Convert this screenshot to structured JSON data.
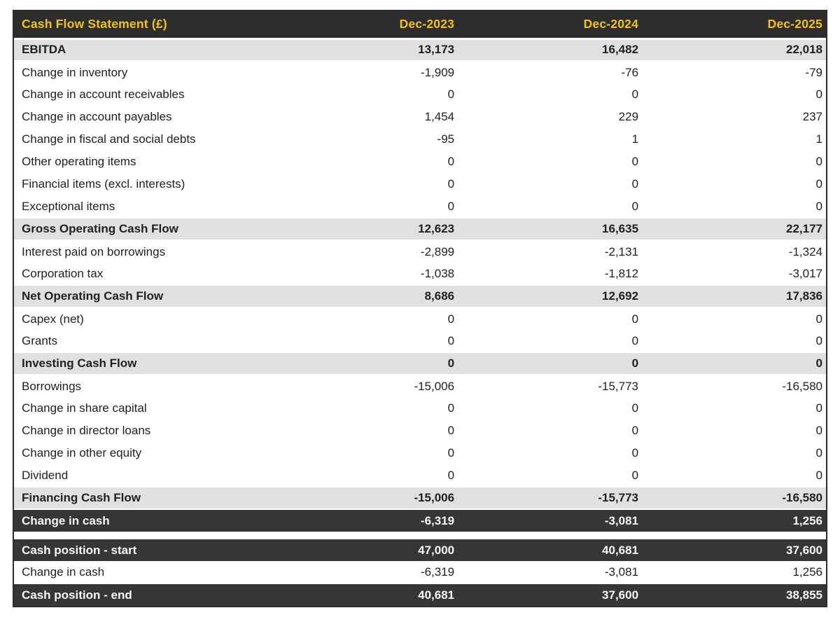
{
  "colors": {
    "header_bg": "#2d2d2d",
    "header_text": "#f2c21b",
    "subtotal_bg": "#e0e0e0",
    "dark_row_bg": "#363636",
    "dark_row_text": "#f5f5f5",
    "body_text": "#212121",
    "border": "#2d2d2d"
  },
  "chart_data": {
    "type": "table",
    "title": "Cash Flow Statement (£)",
    "columns": [
      "Dec-2023",
      "Dec-2024",
      "Dec-2025"
    ],
    "rows": [
      {
        "label": "EBITDA",
        "values": [
          "13,173",
          "16,482",
          "22,018"
        ],
        "style": "subtotal"
      },
      {
        "label": "Change in inventory",
        "values": [
          "-1,909",
          "-76",
          "-79"
        ],
        "style": "normal"
      },
      {
        "label": "Change in account receivables",
        "values": [
          "0",
          "0",
          "0"
        ],
        "style": "normal"
      },
      {
        "label": "Change in account payables",
        "values": [
          "1,454",
          "229",
          "237"
        ],
        "style": "normal"
      },
      {
        "label": "Change in fiscal and social debts",
        "values": [
          "-95",
          "1",
          "1"
        ],
        "style": "normal"
      },
      {
        "label": "Other operating items",
        "values": [
          "0",
          "0",
          "0"
        ],
        "style": "normal"
      },
      {
        "label": "Financial items (excl. interests)",
        "values": [
          "0",
          "0",
          "0"
        ],
        "style": "normal"
      },
      {
        "label": "Exceptional items",
        "values": [
          "0",
          "0",
          "0"
        ],
        "style": "normal"
      },
      {
        "label": "Gross Operating Cash Flow",
        "values": [
          "12,623",
          "16,635",
          "22,177"
        ],
        "style": "subtotal"
      },
      {
        "label": "Interest paid on borrowings",
        "values": [
          "-2,899",
          "-2,131",
          "-1,324"
        ],
        "style": "normal"
      },
      {
        "label": "Corporation tax",
        "values": [
          "-1,038",
          "-1,812",
          "-3,017"
        ],
        "style": "normal"
      },
      {
        "label": "Net Operating Cash Flow",
        "values": [
          "8,686",
          "12,692",
          "17,836"
        ],
        "style": "subtotal"
      },
      {
        "label": "Capex (net)",
        "values": [
          "0",
          "0",
          "0"
        ],
        "style": "normal"
      },
      {
        "label": "Grants",
        "values": [
          "0",
          "0",
          "0"
        ],
        "style": "normal"
      },
      {
        "label": "Investing Cash Flow",
        "values": [
          "0",
          "0",
          "0"
        ],
        "style": "subtotal"
      },
      {
        "label": "Borrowings",
        "values": [
          "-15,006",
          "-15,773",
          "-16,580"
        ],
        "style": "normal"
      },
      {
        "label": "Change in share capital",
        "values": [
          "0",
          "0",
          "0"
        ],
        "style": "normal"
      },
      {
        "label": "Change in director loans",
        "values": [
          "0",
          "0",
          "0"
        ],
        "style": "normal"
      },
      {
        "label": "Change in other equity",
        "values": [
          "0",
          "0",
          "0"
        ],
        "style": "normal"
      },
      {
        "label": "Dividend",
        "values": [
          "0",
          "0",
          "0"
        ],
        "style": "normal"
      },
      {
        "label": "Financing Cash Flow",
        "values": [
          "-15,006",
          "-15,773",
          "-16,580"
        ],
        "style": "subtotal"
      },
      {
        "label": "Change in cash",
        "values": [
          "-6,319",
          "-3,081",
          "1,256"
        ],
        "style": "dark"
      },
      {
        "label": "",
        "values": [],
        "style": "spacer"
      },
      {
        "label": "Cash position - start",
        "values": [
          "47,000",
          "40,681",
          "37,600"
        ],
        "style": "dark"
      },
      {
        "label": "Change in cash",
        "values": [
          "-6,319",
          "-3,081",
          "1,256"
        ],
        "style": "normal"
      },
      {
        "label": "Cash position - end",
        "values": [
          "40,681",
          "37,600",
          "38,855"
        ],
        "style": "dark"
      }
    ]
  }
}
